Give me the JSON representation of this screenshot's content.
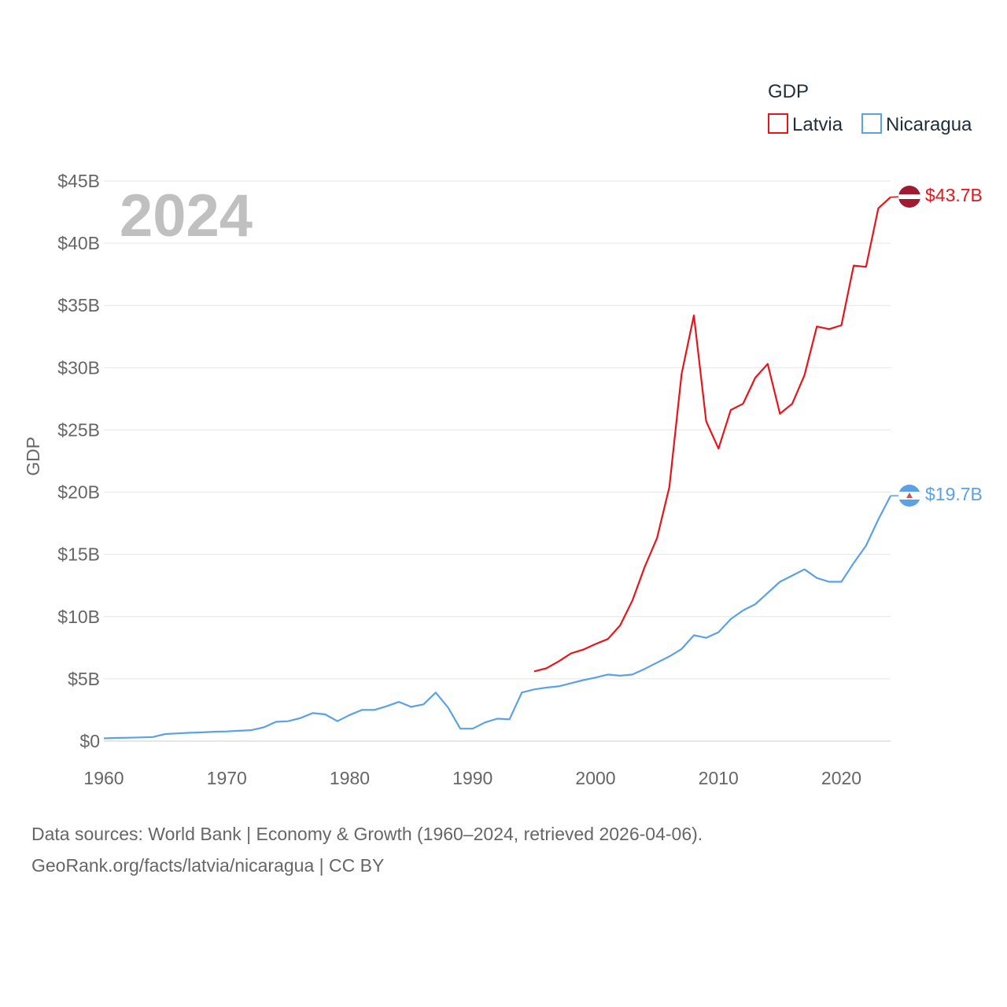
{
  "chart_data": {
    "type": "line",
    "title": "GDP",
    "year_label": "2024",
    "xlabel": "",
    "ylabel": "GDP",
    "xlim": [
      1960,
      2024
    ],
    "ylim": [
      0,
      45
    ],
    "grid": true,
    "legend_position": "top-right",
    "x_ticks": [
      1960,
      1970,
      1980,
      1990,
      2000,
      2010,
      2020
    ],
    "x_tick_labels": [
      "1960",
      "1970",
      "1980",
      "1990",
      "2000",
      "2010",
      "2020"
    ],
    "y_ticks": [
      0,
      5,
      10,
      15,
      20,
      25,
      30,
      35,
      40,
      45
    ],
    "y_tick_labels": [
      "$0",
      "$5B",
      "$10B",
      "$15B",
      "$20B",
      "$25B",
      "$30B",
      "$35B",
      "$40B",
      "$45B"
    ],
    "series": [
      {
        "name": "Latvia",
        "color": "#e8141c",
        "end_label": "$43.7B",
        "x": [
          1995,
          1996,
          1997,
          1998,
          1999,
          2000,
          2001,
          2002,
          2003,
          2004,
          2005,
          2006,
          2007,
          2008,
          2009,
          2010,
          2011,
          2012,
          2013,
          2014,
          2015,
          2016,
          2017,
          2018,
          2019,
          2020,
          2021,
          2022,
          2023,
          2024
        ],
        "values": [
          5.6,
          5.85,
          6.4,
          7.05,
          7.35,
          7.8,
          8.2,
          9.3,
          11.3,
          14.0,
          16.3,
          20.4,
          29.5,
          34.2,
          25.7,
          23.5,
          26.6,
          27.1,
          29.2,
          30.3,
          26.3,
          27.1,
          29.4,
          33.3,
          33.1,
          33.4,
          38.2,
          38.1,
          42.8,
          43.7
        ]
      },
      {
        "name": "Nicaragua",
        "color": "#5aa2e4",
        "end_label": "$19.7B",
        "x": [
          1960,
          1961,
          1962,
          1963,
          1964,
          1965,
          1966,
          1967,
          1968,
          1969,
          1970,
          1971,
          1972,
          1973,
          1974,
          1975,
          1976,
          1977,
          1978,
          1979,
          1980,
          1981,
          1982,
          1983,
          1984,
          1985,
          1986,
          1987,
          1988,
          1989,
          1990,
          1991,
          1992,
          1993,
          1994,
          1995,
          1996,
          1997,
          1998,
          1999,
          2000,
          2001,
          2002,
          2003,
          2004,
          2005,
          2006,
          2007,
          2008,
          2009,
          2010,
          2011,
          2012,
          2013,
          2014,
          2015,
          2016,
          2017,
          2018,
          2019,
          2020,
          2021,
          2022,
          2023,
          2024
        ],
        "values": [
          0.22,
          0.25,
          0.27,
          0.3,
          0.33,
          0.57,
          0.62,
          0.67,
          0.7,
          0.75,
          0.78,
          0.83,
          0.88,
          1.1,
          1.55,
          1.6,
          1.85,
          2.25,
          2.15,
          1.6,
          2.1,
          2.5,
          2.5,
          2.8,
          3.15,
          2.75,
          2.95,
          3.9,
          2.7,
          1.0,
          1.0,
          1.5,
          1.8,
          1.75,
          3.9,
          4.15,
          4.3,
          4.4,
          4.65,
          4.9,
          5.1,
          5.35,
          5.25,
          5.35,
          5.8,
          6.3,
          6.8,
          7.4,
          8.5,
          8.3,
          8.75,
          9.8,
          10.5,
          11.0,
          11.9,
          12.8,
          13.3,
          13.8,
          13.1,
          12.8,
          12.8,
          14.3,
          15.7,
          17.8,
          19.7
        ]
      }
    ]
  },
  "footer": {
    "line1": "Data sources: World Bank | Economy & Growth (1960–2024, retrieved 2026-04-06).",
    "line2": "GeoRank.org/facts/latvia/nicaragua | CC BY"
  }
}
